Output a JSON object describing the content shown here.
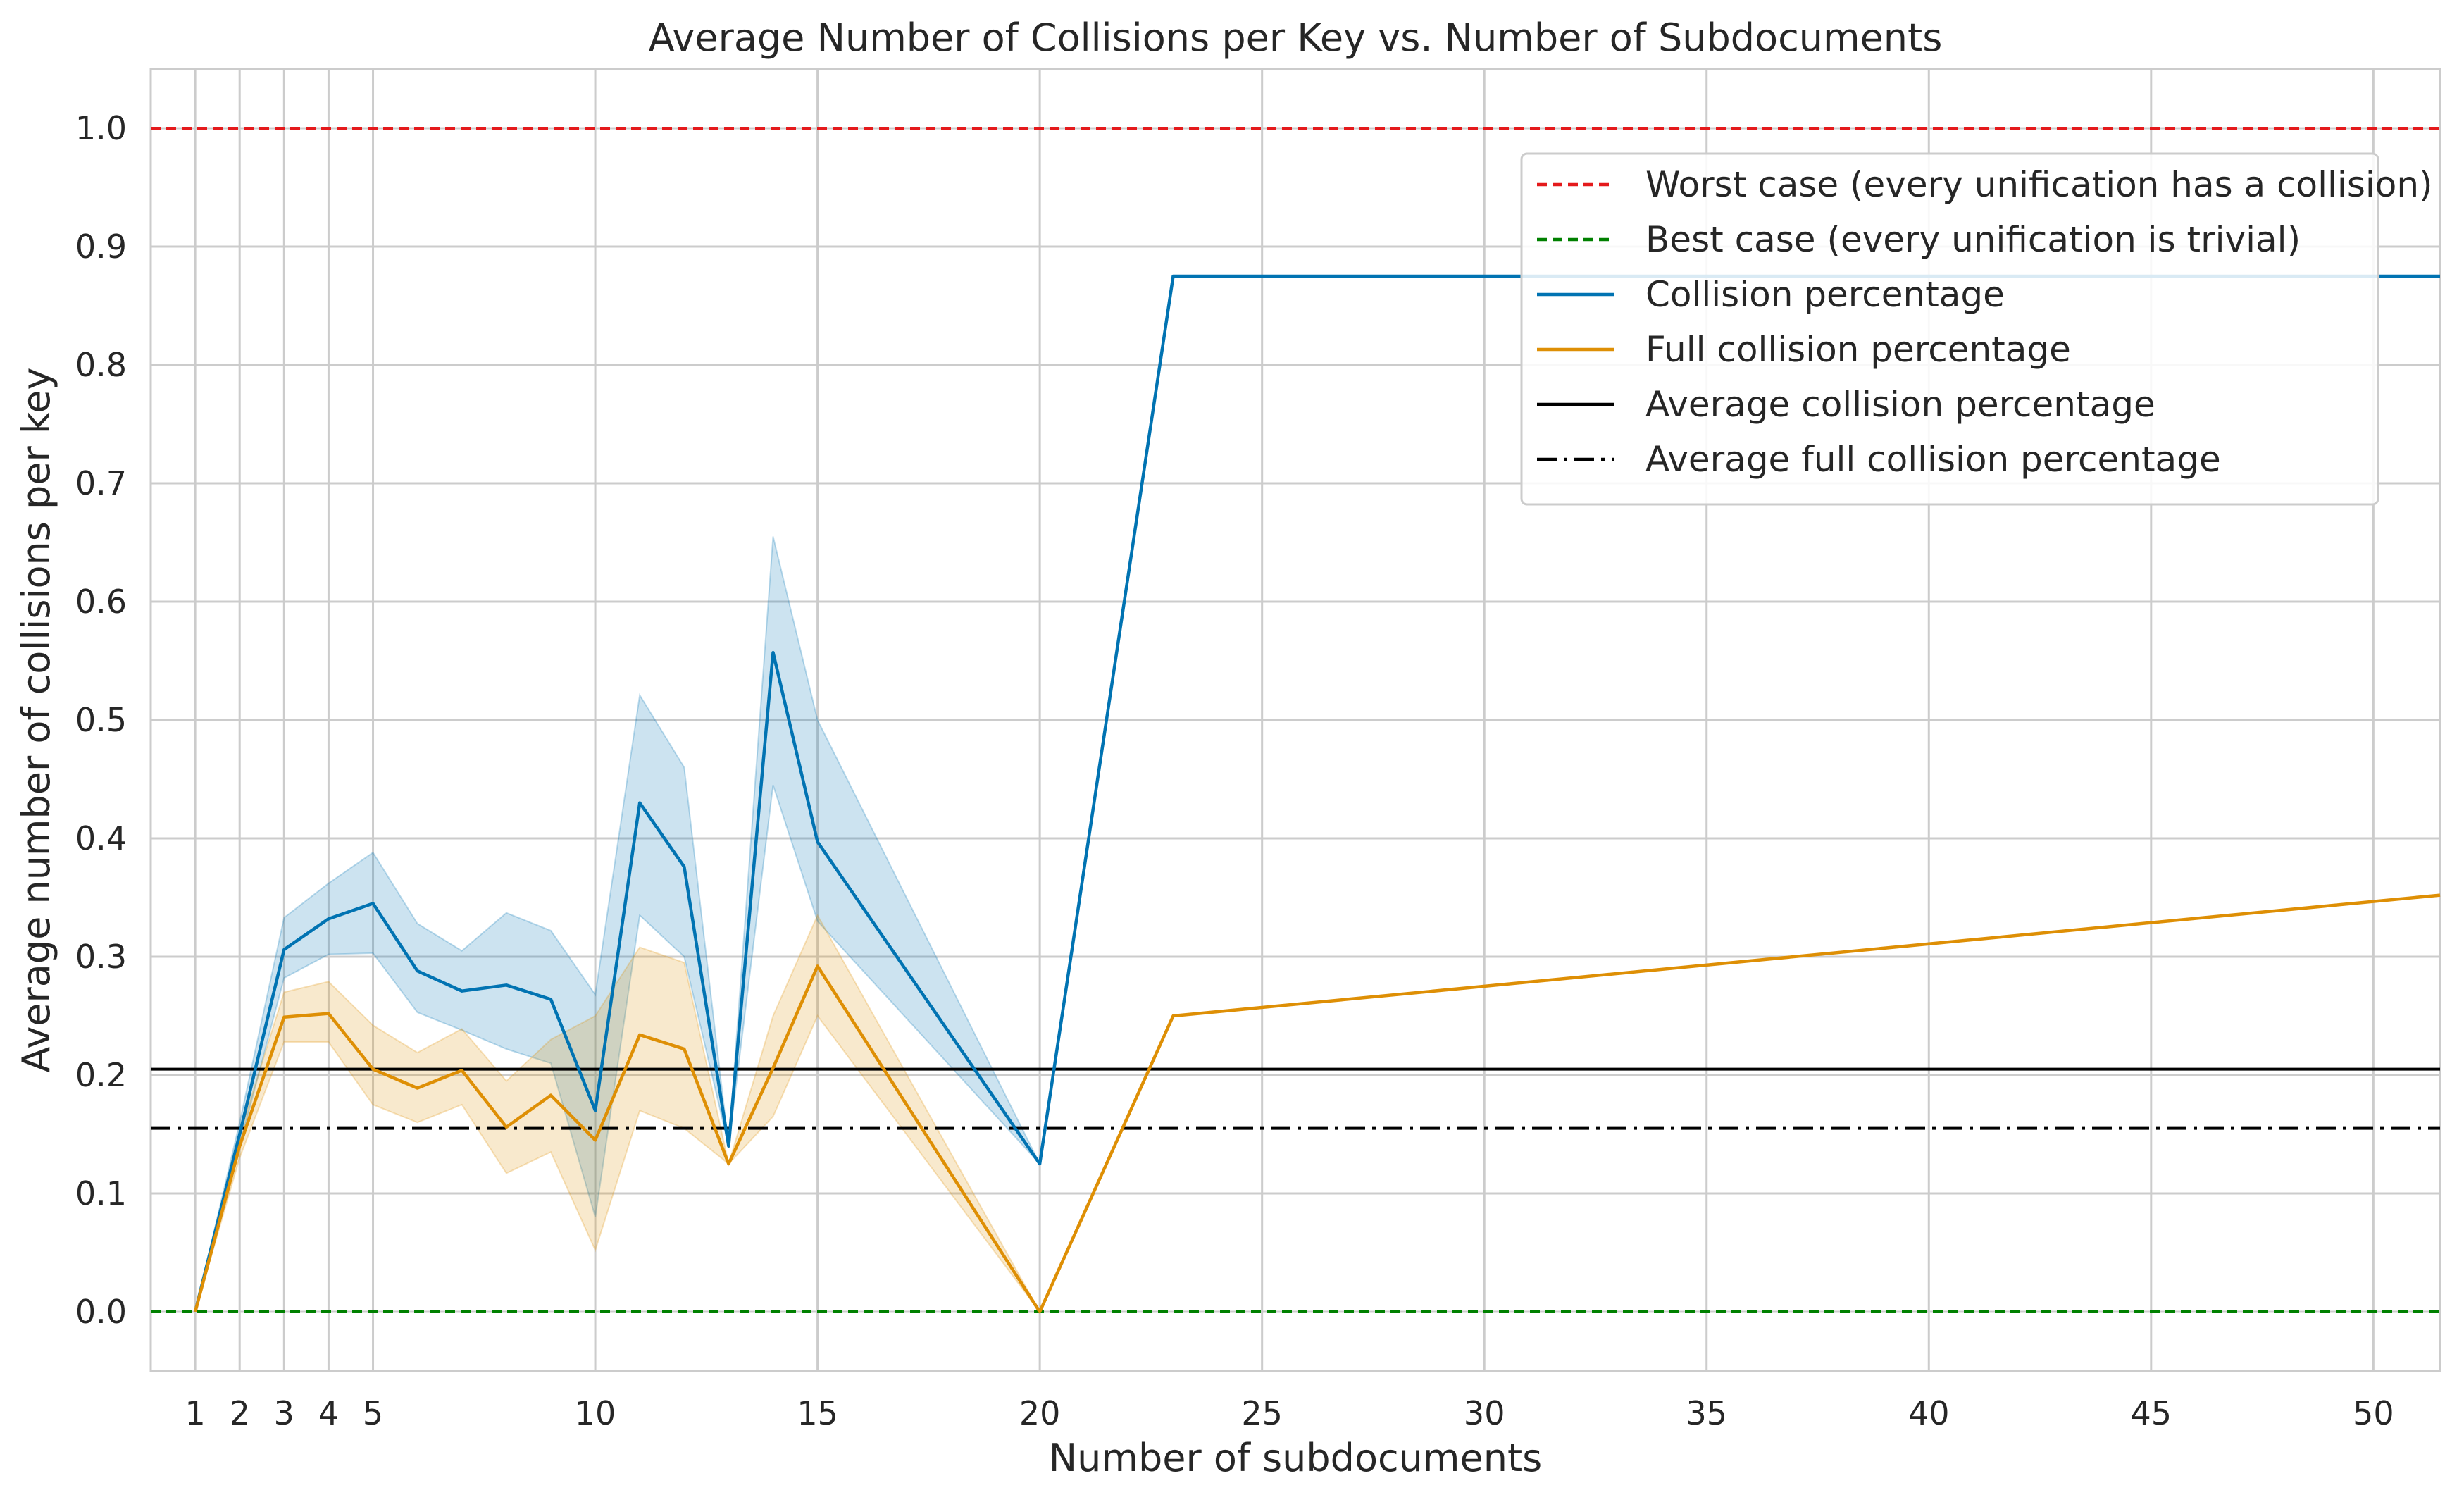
{
  "chart_data": {
    "type": "line",
    "title": "Average Number of Collisions per Key vs. Number of Subdocuments",
    "xlabel": "Number of subdocuments",
    "ylabel": "Average number of collisions per key",
    "xlim": [
      0,
      51.5
    ],
    "ylim": [
      -0.05,
      1.05
    ],
    "xticks": [
      1,
      2,
      3,
      4,
      5,
      10,
      15,
      20,
      25,
      30,
      35,
      40,
      45,
      50
    ],
    "xtick_labels": [
      "1",
      "2",
      "3",
      "4",
      "5",
      "10",
      "15",
      "20",
      "25",
      "30",
      "35",
      "40",
      "45",
      "50"
    ],
    "yticks": [
      0.0,
      0.1,
      0.2,
      0.3,
      0.4,
      0.5,
      0.6,
      0.7,
      0.8,
      0.9,
      1.0
    ],
    "ytick_labels": [
      "0.0",
      "0.1",
      "0.2",
      "0.3",
      "0.4",
      "0.5",
      "0.6",
      "0.7",
      "0.8",
      "0.9",
      "1.0"
    ],
    "grid": true,
    "legend_position": "top-right",
    "reference_lines": [
      {
        "name": "Worst case (every unification has a collision)",
        "y": 1.0,
        "color": "#e41a1c",
        "style": "dashed"
      },
      {
        "name": "Best case (every unification is trivial)",
        "y": 0.0,
        "color": "#008000",
        "style": "dashed"
      },
      {
        "name": "Average collision percentage",
        "y": 0.205,
        "color": "#000000",
        "style": "solid"
      },
      {
        "name": "Average full collision percentage",
        "y": 0.155,
        "color": "#000000",
        "style": "dashdot"
      }
    ],
    "series": [
      {
        "name": "Collision percentage",
        "color": "#0173b2",
        "x": [
          1,
          2,
          3,
          4,
          5,
          6,
          7,
          8,
          9,
          10,
          11,
          12,
          13,
          14,
          15,
          20,
          23,
          51.5
        ],
        "y": [
          0.0,
          0.15,
          0.306,
          0.332,
          0.345,
          0.288,
          0.271,
          0.276,
          0.264,
          0.17,
          0.43,
          0.376,
          0.14,
          0.557,
          0.397,
          0.125,
          0.875,
          0.875
        ],
        "ci_x": [
          1,
          2,
          3,
          4,
          5,
          6,
          7,
          8,
          9,
          10,
          11,
          12,
          13,
          14,
          15,
          20
        ],
        "ci_lower": [
          0.0,
          0.14,
          0.282,
          0.302,
          0.303,
          0.253,
          0.238,
          0.222,
          0.21,
          0.08,
          0.335,
          0.3,
          0.14,
          0.445,
          0.33,
          0.125
        ],
        "ci_upper": [
          0.0,
          0.16,
          0.333,
          0.362,
          0.388,
          0.328,
          0.305,
          0.337,
          0.322,
          0.268,
          0.521,
          0.46,
          0.14,
          0.655,
          0.5,
          0.125
        ]
      },
      {
        "name": "Full collision percentage",
        "color": "#de8f05",
        "x": [
          1,
          2,
          3,
          4,
          5,
          6,
          7,
          8,
          9,
          10,
          11,
          12,
          13,
          14,
          15,
          20,
          23,
          51.5
        ],
        "y": [
          0.0,
          0.14,
          0.249,
          0.252,
          0.205,
          0.189,
          0.204,
          0.156,
          0.183,
          0.145,
          0.234,
          0.222,
          0.125,
          0.206,
          0.292,
          0.0,
          0.25,
          0.352
        ],
        "ci_x": [
          1,
          2,
          3,
          4,
          5,
          6,
          7,
          8,
          9,
          10,
          11,
          12,
          13,
          14,
          15,
          20
        ],
        "ci_lower": [
          0.0,
          0.13,
          0.228,
          0.228,
          0.175,
          0.16,
          0.175,
          0.117,
          0.135,
          0.052,
          0.17,
          0.155,
          0.125,
          0.165,
          0.25,
          0.0
        ],
        "ci_upper": [
          0.0,
          0.15,
          0.27,
          0.279,
          0.242,
          0.219,
          0.239,
          0.195,
          0.23,
          0.25,
          0.308,
          0.295,
          0.125,
          0.25,
          0.335,
          0.0
        ]
      }
    ],
    "legend": [
      {
        "label": "Worst case (every unification has a collision)",
        "color": "#e41a1c",
        "style": "dashed"
      },
      {
        "label": "Best case (every unification is trivial)",
        "color": "#008000",
        "style": "dashed"
      },
      {
        "label": "Collision percentage",
        "color": "#0173b2",
        "style": "solid"
      },
      {
        "label": "Full collision percentage",
        "color": "#de8f05",
        "style": "solid"
      },
      {
        "label": "Average collision percentage",
        "color": "#000000",
        "style": "solid"
      },
      {
        "label": "Average full collision percentage",
        "color": "#000000",
        "style": "dashdot"
      }
    ]
  }
}
